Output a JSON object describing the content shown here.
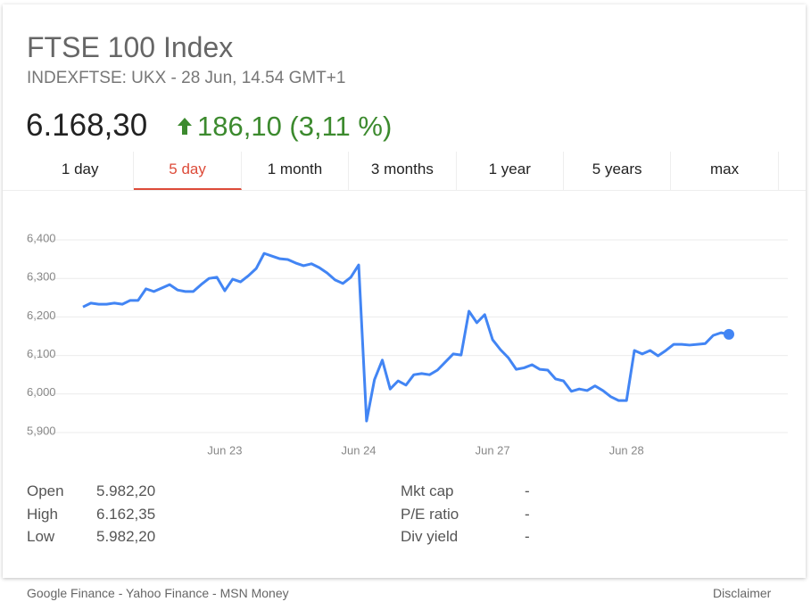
{
  "header": {
    "title": "FTSE 100 Index",
    "subtitle": "INDEXFTSE: UKX - 28 Jun, 14.54 GMT+1",
    "price": "6.168,30",
    "change": "186,10 (3,11 %)"
  },
  "tabs": {
    "items": [
      "1 day",
      "5 day",
      "1 month",
      "3 months",
      "1 year",
      "5 years",
      "max"
    ],
    "active": 1
  },
  "chart_data": {
    "type": "line",
    "color": "#4285f4",
    "grid": true,
    "categories": [
      null,
      null,
      null,
      null,
      null,
      null,
      null,
      null,
      null,
      null,
      null,
      null,
      null,
      null,
      null,
      null,
      null,
      null,
      "Jun 23",
      null,
      null,
      null,
      null,
      null,
      null,
      null,
      null,
      null,
      null,
      null,
      null,
      null,
      null,
      null,
      null,
      "Jun 24",
      null,
      null,
      null,
      null,
      null,
      null,
      null,
      null,
      null,
      null,
      null,
      null,
      null,
      null,
      null,
      null,
      "Jun 27",
      null,
      null,
      null,
      null,
      null,
      null,
      null,
      null,
      null,
      null,
      null,
      null,
      null,
      null,
      null,
      null,
      "Jun 28",
      null,
      null,
      null,
      null,
      null,
      null,
      null,
      null,
      null,
      null,
      null,
      null,
      null
    ],
    "values": [
      6226,
      6236,
      6233,
      6233,
      6236,
      6233,
      6243,
      6243,
      6273,
      6266,
      6275,
      6284,
      6270,
      6266,
      6266,
      6284,
      6300,
      6303,
      6268,
      6298,
      6291,
      6307,
      6326,
      6365,
      6358,
      6351,
      6349,
      6340,
      6333,
      6338,
      6328,
      6314,
      6296,
      6287,
      6303,
      6335,
      5930,
      6037,
      6088,
      6013,
      6034,
      6023,
      6050,
      6053,
      6050,
      6062,
      6083,
      6104,
      6101,
      6215,
      6185,
      6206,
      6141,
      6115,
      6094,
      6064,
      6068,
      6076,
      6064,
      6062,
      6039,
      6034,
      6007,
      6013,
      6009,
      6021,
      6009,
      5993,
      5983,
      5983,
      6113,
      6104,
      6113,
      6099,
      6113,
      6129,
      6129,
      6127,
      6129,
      6131,
      6152,
      6159,
      6155
    ],
    "ylim": [
      5900,
      6400
    ],
    "yticks": [
      {
        "value": 5900,
        "label": "5,900"
      },
      {
        "value": 6000,
        "label": "6,000"
      },
      {
        "value": 6100,
        "label": "6,100"
      },
      {
        "value": 6200,
        "label": "6,200"
      },
      {
        "value": 6300,
        "label": "6,300"
      },
      {
        "value": 6400,
        "label": "6,400"
      }
    ]
  },
  "stats": {
    "left": [
      {
        "label": "Open",
        "value": "5.982,20"
      },
      {
        "label": "High",
        "value": "6.162,35"
      },
      {
        "label": "Low",
        "value": "5.982,20"
      }
    ],
    "right": [
      {
        "label": "Mkt cap",
        "value": "-"
      },
      {
        "label": "P/E ratio",
        "value": "-"
      },
      {
        "label": "Div yield",
        "value": "-"
      }
    ]
  },
  "footer": {
    "sources": "Google Finance - Yahoo Finance - MSN Money",
    "disclaimer": "Disclaimer"
  }
}
